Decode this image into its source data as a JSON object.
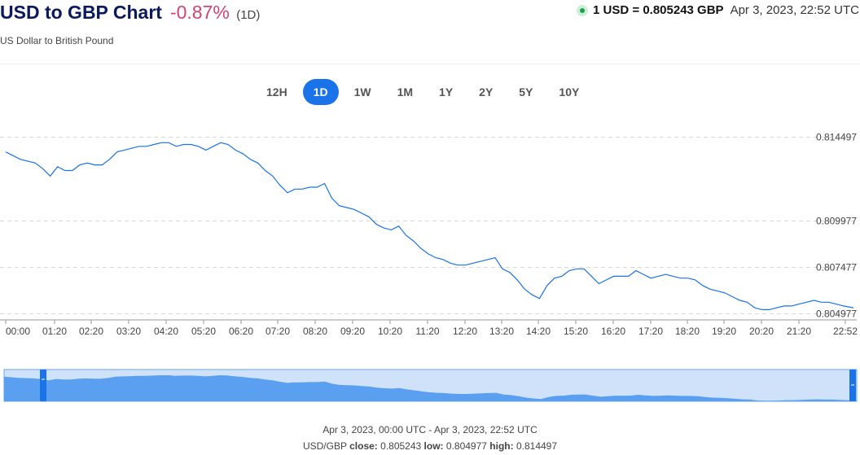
{
  "header": {
    "title": "USD to GBP Chart",
    "change": "-0.87%",
    "period": "(1D)",
    "subtitle": "US Dollar to British Pound",
    "rate": "1 USD = 0.805243 GBP",
    "timestamp": "Apr 3, 2023, 22:52 UTC"
  },
  "periods": [
    {
      "label": "12H",
      "active": false
    },
    {
      "label": "1D",
      "active": true
    },
    {
      "label": "1W",
      "active": false
    },
    {
      "label": "1M",
      "active": false
    },
    {
      "label": "1Y",
      "active": false
    },
    {
      "label": "2Y",
      "active": false
    },
    {
      "label": "5Y",
      "active": false
    },
    {
      "label": "10Y",
      "active": false
    }
  ],
  "colors": {
    "line": "#1a73e8",
    "navigator_fill": "#5b9ff0",
    "navigator_bg": "#cfe2f9",
    "handle": "#1a73e8",
    "active_period": "#1a73e8",
    "change": "#d6436e"
  },
  "chart_data": {
    "type": "line",
    "title": "USD to GBP Chart",
    "xlabel": "",
    "ylabel": "",
    "x_ticks": [
      "00:00",
      "01:20",
      "02:20",
      "03:20",
      "04:20",
      "05:20",
      "06:20",
      "07:20",
      "08:20",
      "09:20",
      "10:20",
      "11:20",
      "12:20",
      "13:20",
      "14:20",
      "15:20",
      "16:20",
      "17:20",
      "18:20",
      "19:20",
      "20:20",
      "21:20",
      "22:52"
    ],
    "y_ticks": [
      0.814497,
      0.809977,
      0.807477,
      0.804977
    ],
    "y_tick_labels": [
      "0.814497",
      "0.809977",
      "0.807477",
      "0.804977"
    ],
    "ylim": [
      0.8047,
      0.815
    ],
    "grid": true,
    "x_hours": [
      0,
      0.4,
      0.8,
      1.0,
      1.2,
      1.4,
      1.6,
      1.8,
      2.0,
      2.2,
      2.4,
      2.6,
      2.8,
      3.0,
      3.2,
      3.4,
      3.6,
      3.8,
      4.0,
      4.2,
      4.4,
      4.6,
      4.8,
      5.0,
      5.2,
      5.4,
      5.6,
      5.8,
      6.0,
      6.2,
      6.4,
      6.6,
      6.8,
      7.0,
      7.2,
      7.4,
      7.6,
      7.8,
      8.0,
      8.2,
      8.4,
      8.6,
      8.8,
      9.0,
      9.2,
      9.4,
      9.6,
      9.8,
      10.0,
      10.2,
      10.4,
      10.6,
      10.8,
      11.0,
      11.2,
      11.4,
      11.6,
      11.8,
      12.0,
      12.2,
      12.4,
      12.6,
      12.8,
      13.0,
      13.2,
      13.4,
      13.6,
      13.8,
      14.0,
      14.2,
      14.4,
      14.6,
      14.8,
      15.0,
      15.2,
      15.4,
      15.6,
      15.8,
      16.0,
      16.2,
      16.4,
      16.6,
      16.8,
      17.0,
      17.2,
      17.4,
      17.6,
      17.8,
      18.0,
      18.2,
      18.4,
      18.6,
      18.8,
      19.0,
      19.2,
      19.4,
      19.6,
      19.8,
      20.0,
      20.2,
      20.4,
      20.6,
      20.8,
      21.0,
      21.2,
      21.4,
      21.6,
      21.8,
      22.0,
      22.2,
      22.4,
      22.6,
      22.867
    ],
    "series": [
      {
        "values": [
          0.8137,
          0.8133,
          0.8131,
          0.8128,
          0.8124,
          0.8129,
          0.8127,
          0.8127,
          0.813,
          0.8131,
          0.813,
          0.813,
          0.8133,
          0.8137,
          0.8138,
          0.8139,
          0.814,
          0.814,
          0.8141,
          0.8142,
          0.8142,
          0.814,
          0.8141,
          0.8141,
          0.814,
          0.8138,
          0.814,
          0.8142,
          0.8141,
          0.8138,
          0.8136,
          0.8133,
          0.8131,
          0.8127,
          0.8124,
          0.8119,
          0.8115,
          0.8117,
          0.8117,
          0.8118,
          0.8118,
          0.812,
          0.8112,
          0.8108,
          0.8107,
          0.8106,
          0.8104,
          0.8102,
          0.8098,
          0.8096,
          0.8095,
          0.8097,
          0.8092,
          0.8089,
          0.8085,
          0.8082,
          0.808,
          0.8079,
          0.8077,
          0.8076,
          0.8076,
          0.8077,
          0.8078,
          0.8079,
          0.808,
          0.8074,
          0.8072,
          0.8068,
          0.8063,
          0.806,
          0.8058,
          0.8065,
          0.8069,
          0.807,
          0.8073,
          0.8074,
          0.8074,
          0.807,
          0.8066,
          0.8068,
          0.807,
          0.807,
          0.807,
          0.8073,
          0.8071,
          0.8069,
          0.807,
          0.8071,
          0.807,
          0.8069,
          0.8069,
          0.8068,
          0.8065,
          0.8063,
          0.8062,
          0.8061,
          0.8059,
          0.8057,
          0.8056,
          0.8053,
          0.8052,
          0.8052,
          0.8053,
          0.8054,
          0.8054,
          0.8055,
          0.8056,
          0.8057,
          0.8056,
          0.8056,
          0.8055,
          0.8054,
          0.8053
        ]
      }
    ],
    "navigator": {
      "range": "Apr 3, 2023, 00:00 UTC - Apr 3, 2023, 22:52 UTC"
    },
    "summary": {
      "pair_label": "USD/GBP",
      "close_label": "close:",
      "close": "0.805243",
      "low_label": "low:",
      "low": "0.804977",
      "high_label": "high:",
      "high": "0.814497"
    }
  }
}
